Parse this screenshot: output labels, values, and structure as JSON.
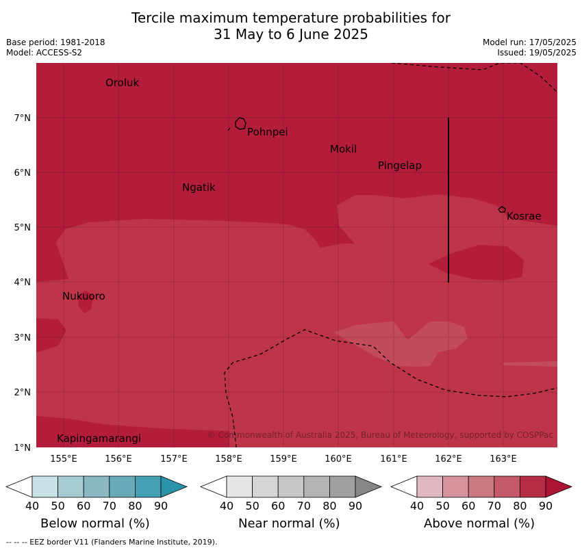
{
  "header": {
    "title_line1": "Tercile maximum temperature probabilities for",
    "title_line2": "31 May to 6 June 2025",
    "base_period": "Base period: 1981-2018",
    "model": "Model: ACCESS-S2",
    "model_run": "Model run: 17/05/2025",
    "issued": "Issued: 19/05/2025"
  },
  "map": {
    "lon_ticks": [
      "155°E",
      "156°E",
      "157°E",
      "158°E",
      "159°E",
      "160°E",
      "161°E",
      "162°E",
      "163°E"
    ],
    "lat_ticks": [
      "1°N",
      "2°N",
      "3°N",
      "4°N",
      "5°N",
      "6°N",
      "7°N"
    ],
    "places": [
      {
        "name": "Oroluk"
      },
      {
        "name": "Pohnpei"
      },
      {
        "name": "Mokil"
      },
      {
        "name": "Pingelap"
      },
      {
        "name": "Ngatik"
      },
      {
        "name": "Kosrae"
      },
      {
        "name": "Nukuoro"
      },
      {
        "name": "Kapingamarangi"
      }
    ],
    "copyright": "© Commonwealth of Australia 2025, Bureau of Meteorology, supported by COSPPac"
  },
  "legends": [
    {
      "title": "Below normal (%)",
      "ticks": [
        "40",
        "50",
        "60",
        "70",
        "80",
        "90"
      ],
      "colors": [
        "#ffffff",
        "#c8e1e7",
        "#a7cbd2",
        "#8ab8c2",
        "#68aab8",
        "#44a1b3",
        "#2b93a8"
      ]
    },
    {
      "title": "Near normal (%)",
      "ticks": [
        "40",
        "50",
        "60",
        "70",
        "80",
        "90"
      ],
      "colors": [
        "#ffffff",
        "#e6e6e6",
        "#d5d5d5",
        "#c7c7c7",
        "#b3b3b3",
        "#a0a0a0",
        "#868686"
      ]
    },
    {
      "title": "Above normal (%)",
      "ticks": [
        "40",
        "50",
        "60",
        "70",
        "80",
        "90"
      ],
      "colors": [
        "#ffffff",
        "#e0b8c0",
        "#d5939d",
        "#cc7882",
        "#c5596a",
        "#b72c45",
        "#ad1434"
      ]
    }
  ],
  "footnote": "--  --  -- EEZ border V11 (Flanders Marine Institute, 2019)."
}
